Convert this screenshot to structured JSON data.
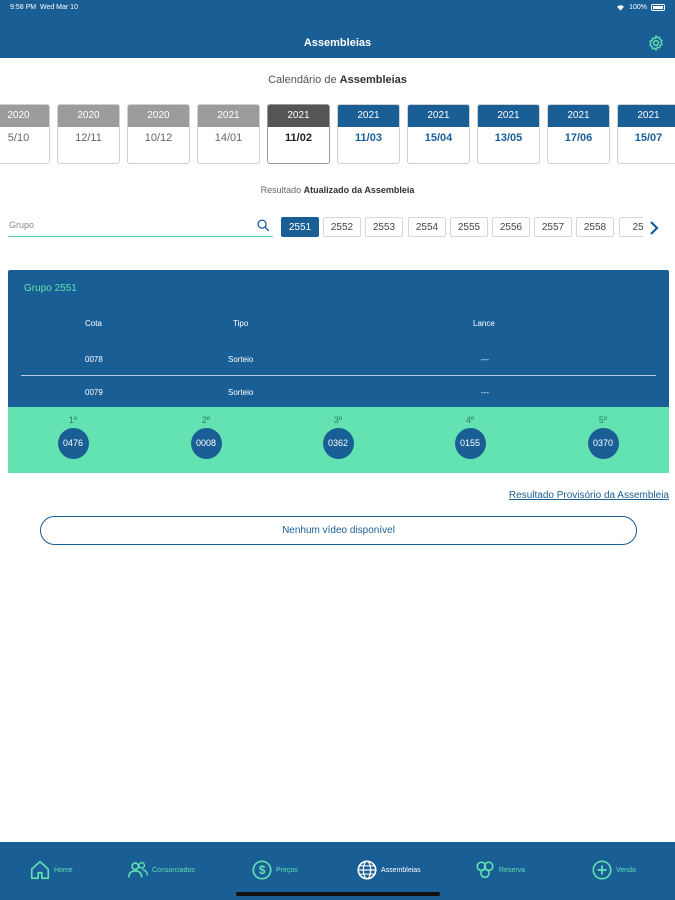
{
  "status": {
    "time": "9:58 PM",
    "date": "Wed Mar 10",
    "battery": "100%"
  },
  "header": {
    "title": "Assembleias"
  },
  "calendar": {
    "title_prefix": "Calendário de ",
    "title_bold": "Assembleias",
    "dates": [
      {
        "year": "2020",
        "date": "5/10",
        "state": "past"
      },
      {
        "year": "2020",
        "date": "12/11",
        "state": "past"
      },
      {
        "year": "2020",
        "date": "10/12",
        "state": "past"
      },
      {
        "year": "2021",
        "date": "14/01",
        "state": "past"
      },
      {
        "year": "2021",
        "date": "11/02",
        "state": "selected"
      },
      {
        "year": "2021",
        "date": "11/03",
        "state": "future"
      },
      {
        "year": "2021",
        "date": "15/04",
        "state": "future"
      },
      {
        "year": "2021",
        "date": "13/05",
        "state": "future"
      },
      {
        "year": "2021",
        "date": "17/06",
        "state": "future"
      },
      {
        "year": "2021",
        "date": "15/07",
        "state": "future"
      }
    ]
  },
  "result": {
    "title_prefix": "Resultado ",
    "title_bold": "Atualizado da Assembleia"
  },
  "search": {
    "placeholder": "Grupo"
  },
  "groups": [
    "2551",
    "2552",
    "2553",
    "2554",
    "2555",
    "2556",
    "2557",
    "2558",
    "25"
  ],
  "selected_group": "2551",
  "panel": {
    "title": "Grupo 2551",
    "headers": {
      "cota": "Cota",
      "tipo": "Tipo",
      "lance": "Lance"
    },
    "rows": [
      {
        "cota": "0078",
        "tipo": "Sorteio",
        "lance": "---"
      },
      {
        "cota": "0079",
        "tipo": "Sorteio",
        "lance": "---"
      }
    ]
  },
  "sorteio": [
    {
      "ord": "1º",
      "num": "0476"
    },
    {
      "ord": "2º",
      "num": "0008"
    },
    {
      "ord": "3º",
      "num": "0362"
    },
    {
      "ord": "4º",
      "num": "0155"
    },
    {
      "ord": "5º",
      "num": "0370"
    }
  ],
  "provisional_link": "Resultado Provisório da Assembleia",
  "video_button": "Nenhum vídeo disponível",
  "tabs": [
    {
      "label": "Home",
      "icon": "home-icon"
    },
    {
      "label": "Consorciados",
      "icon": "users-icon"
    },
    {
      "label": "Preços",
      "icon": "dollar-icon"
    },
    {
      "label": "Assembleias",
      "icon": "globe-icon"
    },
    {
      "label": "Reserva",
      "icon": "reserve-icon"
    },
    {
      "label": "Venda",
      "icon": "plus-circle-icon"
    }
  ],
  "active_tab": "Assembleias",
  "colors": {
    "primary": "#1a5e96",
    "accent": "#62e3b1",
    "past": "#9c9c9c",
    "selected": "#555555"
  }
}
